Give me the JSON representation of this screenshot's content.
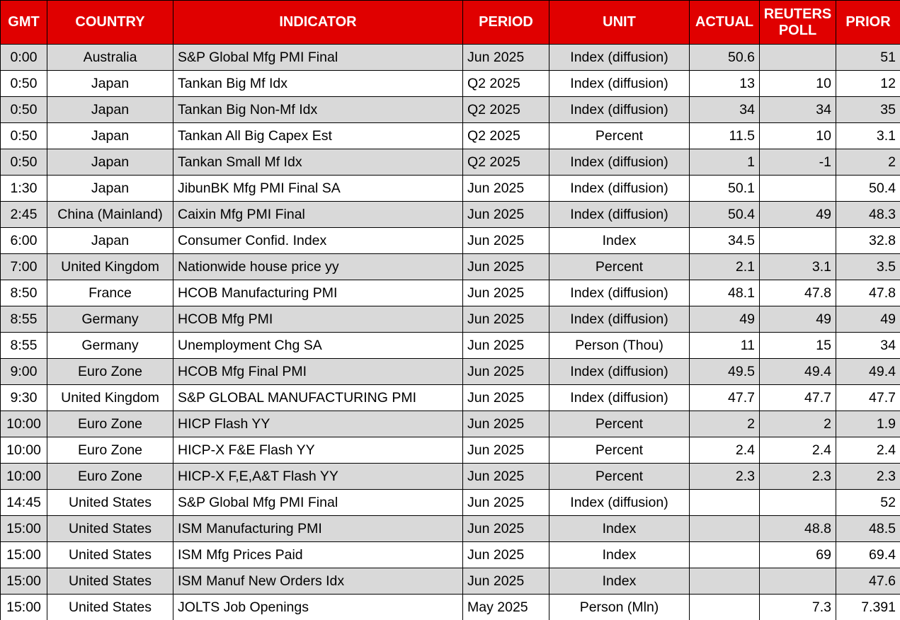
{
  "colors": {
    "header_bg": "#E00000",
    "header_text": "#FFFFFF",
    "row_alt_bg": "#D9D9D9",
    "row_bg": "#FFFFFF",
    "border": "#000000"
  },
  "chart_data": {
    "type": "table",
    "columns": [
      {
        "key": "gmt",
        "label": "GMT",
        "align": "center"
      },
      {
        "key": "country",
        "label": "COUNTRY",
        "align": "center"
      },
      {
        "key": "indicator",
        "label": "INDICATOR",
        "align": "left"
      },
      {
        "key": "period",
        "label": "PERIOD",
        "align": "left"
      },
      {
        "key": "unit",
        "label": "UNIT",
        "align": "center"
      },
      {
        "key": "actual",
        "label": "ACTUAL",
        "align": "right"
      },
      {
        "key": "reuters-poll",
        "label": "REUTERS POLL",
        "align": "right"
      },
      {
        "key": "prior",
        "label": "PRIOR",
        "align": "right"
      }
    ],
    "rows": [
      [
        "0:00",
        "Australia",
        "S&P Global Mfg PMI Final",
        "Jun 2025",
        "Index (diffusion)",
        "50.6",
        "",
        "51"
      ],
      [
        "0:50",
        "Japan",
        "Tankan Big Mf Idx",
        "Q2 2025",
        "Index (diffusion)",
        "13",
        "10",
        "12"
      ],
      [
        "0:50",
        "Japan",
        "Tankan Big Non-Mf Idx",
        "Q2 2025",
        "Index (diffusion)",
        "34",
        "34",
        "35"
      ],
      [
        "0:50",
        "Japan",
        "Tankan All Big Capex Est",
        "Q2 2025",
        "Percent",
        "11.5",
        "10",
        "3.1"
      ],
      [
        "0:50",
        "Japan",
        "Tankan Small Mf Idx",
        "Q2 2025",
        "Index (diffusion)",
        "1",
        "-1",
        "2"
      ],
      [
        "1:30",
        "Japan",
        "JibunBK Mfg PMI Final SA",
        "Jun 2025",
        "Index (diffusion)",
        "50.1",
        "",
        "50.4"
      ],
      [
        "2:45",
        "China (Mainland)",
        "Caixin Mfg PMI Final",
        "Jun 2025",
        "Index (diffusion)",
        "50.4",
        "49",
        "48.3"
      ],
      [
        "6:00",
        "Japan",
        "Consumer Confid. Index",
        "Jun 2025",
        "Index",
        "34.5",
        "",
        "32.8"
      ],
      [
        "7:00",
        "United Kingdom",
        "Nationwide house price yy",
        "Jun 2025",
        "Percent",
        "2.1",
        "3.1",
        "3.5"
      ],
      [
        "8:50",
        "France",
        "HCOB Manufacturing PMI",
        "Jun 2025",
        "Index (diffusion)",
        "48.1",
        "47.8",
        "47.8"
      ],
      [
        "8:55",
        "Germany",
        "HCOB Mfg PMI",
        "Jun 2025",
        "Index (diffusion)",
        "49",
        "49",
        "49"
      ],
      [
        "8:55",
        "Germany",
        "Unemployment Chg SA",
        "Jun 2025",
        "Person (Thou)",
        "11",
        "15",
        "34"
      ],
      [
        "9:00",
        "Euro Zone",
        "HCOB Mfg Final PMI",
        "Jun 2025",
        "Index (diffusion)",
        "49.5",
        "49.4",
        "49.4"
      ],
      [
        "9:30",
        "United Kingdom",
        "S&P GLOBAL MANUFACTURING PMI",
        "Jun 2025",
        "Index (diffusion)",
        "47.7",
        "47.7",
        "47.7"
      ],
      [
        "10:00",
        "Euro Zone",
        "HICP Flash YY",
        "Jun 2025",
        "Percent",
        "2",
        "2",
        "1.9"
      ],
      [
        "10:00",
        "Euro Zone",
        "HICP-X F&E Flash YY",
        "Jun 2025",
        "Percent",
        "2.4",
        "2.4",
        "2.4"
      ],
      [
        "10:00",
        "Euro Zone",
        "HICP-X F,E,A&T Flash YY",
        "Jun 2025",
        "Percent",
        "2.3",
        "2.3",
        "2.3"
      ],
      [
        "14:45",
        "United States",
        "S&P Global Mfg PMI Final",
        "Jun 2025",
        "Index (diffusion)",
        "",
        "",
        "52"
      ],
      [
        "15:00",
        "United States",
        "ISM Manufacturing PMI",
        "Jun 2025",
        "Index",
        "",
        "48.8",
        "48.5"
      ],
      [
        "15:00",
        "United States",
        "ISM Mfg Prices Paid",
        "Jun 2025",
        "Index",
        "",
        "69",
        "69.4"
      ],
      [
        "15:00",
        "United States",
        "ISM Manuf New Orders Idx",
        "Jun 2025",
        "Index",
        "",
        "",
        "47.6"
      ],
      [
        "15:00",
        "United States",
        "JOLTS Job Openings",
        "May 2025",
        "Person (Mln)",
        "",
        "7.3",
        "7.391"
      ]
    ]
  }
}
